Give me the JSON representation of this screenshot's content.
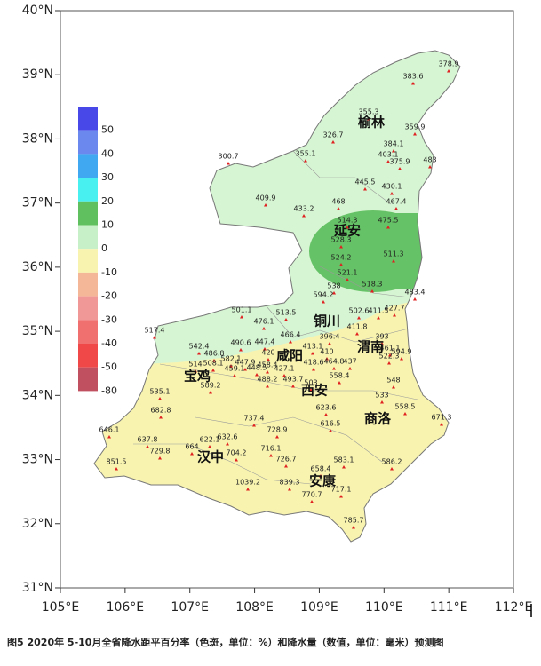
{
  "axes": {
    "x_ticks": [
      "105°E",
      "106°E",
      "107°E",
      "108°E",
      "109°E",
      "110°E",
      "111°E",
      "112°E"
    ],
    "y_ticks": [
      "40°N",
      "39°N",
      "38°N",
      "37°N",
      "36°N",
      "35°N",
      "34°N",
      "33°N",
      "32°N",
      "31°N"
    ]
  },
  "legend": {
    "labels": [
      "50",
      "40",
      "30",
      "20",
      "10",
      "0",
      "-10",
      "-20",
      "-30",
      "-40",
      "-50",
      "-80"
    ]
  },
  "stations": [
    "378.9",
    "383.6",
    "355.3",
    "359.9",
    "326.7",
    "384.1",
    "300.7",
    "355.1",
    "403.1",
    "375.9",
    "483",
    "445.5",
    "430.1",
    "409.9",
    "433.2",
    "468",
    "467.4",
    "514.3",
    "475.5",
    "528.3",
    "524.2",
    "511.3",
    "521.1",
    "538",
    "518.3",
    "594.2",
    "483.4",
    "501.1",
    "513.5",
    "476.1",
    "502.6",
    "411.5",
    "427.7",
    "517.4",
    "466.4",
    "396.4",
    "411.8",
    "393",
    "542.4",
    "490.6",
    "447.4",
    "461.1",
    "486.8",
    "420",
    "413.1",
    "410",
    "464.8",
    "437",
    "522.3",
    "594.9",
    "582.1",
    "514",
    "508.1",
    "447.9",
    "458.4",
    "459.1",
    "448.5",
    "418.6",
    "427.1",
    "558.4",
    "548",
    "589.2",
    "488.2",
    "493.7",
    "503",
    "533",
    "535.1",
    "558.5",
    "682.8",
    "623.6",
    "671.3",
    "737.4",
    "616.5",
    "646.1",
    "728.9",
    "637.8",
    "622.1",
    "632.6",
    "664",
    "729.8",
    "716.1",
    "704.2",
    "726.7",
    "583.1",
    "586.2",
    "851.5",
    "658.4",
    "1039.2",
    "839.3",
    "717.1",
    "770.7",
    "785.7"
  ],
  "cities": [
    "榆林",
    "延安",
    "铜川",
    "渭南",
    "咸阳",
    "宝鸡",
    "西安",
    "商洛",
    "汉中",
    "安康"
  ],
  "caption": "图5  2020年 5-10月全省降水距平百分率（色斑，单位：%）和降水量（数值，单位：毫米）预测图"
}
